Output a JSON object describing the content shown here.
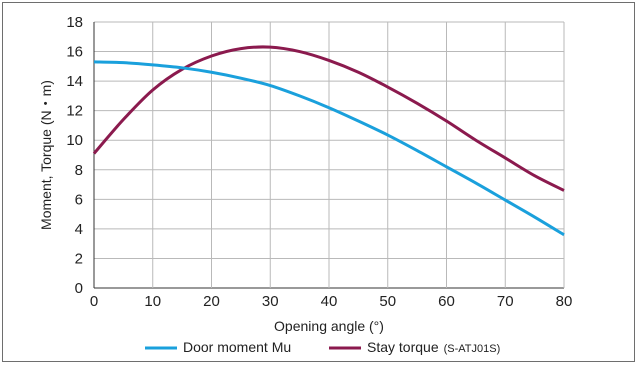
{
  "chart_data": {
    "type": "line",
    "xlabel": "Opening angle (°)",
    "ylabel": "Moment, Torque (N・m)",
    "xlim": [
      0,
      80
    ],
    "ylim": [
      0,
      18
    ],
    "x_ticks": [
      0,
      10,
      20,
      30,
      40,
      50,
      60,
      70,
      80
    ],
    "y_ticks": [
      0,
      2,
      4,
      6,
      8,
      10,
      12,
      14,
      16,
      18
    ],
    "grid": true,
    "legend_position": "bottom",
    "series": [
      {
        "name": "Door moment Mu",
        "color": "#1aa0dc",
        "x": [
          0,
          5,
          10,
          15,
          20,
          25,
          30,
          35,
          40,
          45,
          50,
          55,
          60,
          65,
          70,
          75,
          80
        ],
        "y": [
          15.3,
          15.25,
          15.1,
          14.9,
          14.6,
          14.2,
          13.7,
          13.0,
          12.2,
          11.3,
          10.35,
          9.3,
          8.2,
          7.1,
          5.95,
          4.8,
          3.6
        ]
      },
      {
        "name": "Stay torque",
        "name_suffix": "(S-ATJ01S)",
        "color": "#8b1a4e",
        "x": [
          0,
          5,
          10,
          15,
          20,
          25,
          30,
          35,
          40,
          45,
          50,
          55,
          60,
          65,
          70,
          75,
          80
        ],
        "y": [
          9.1,
          11.4,
          13.4,
          14.8,
          15.7,
          16.2,
          16.3,
          16.0,
          15.4,
          14.6,
          13.6,
          12.5,
          11.3,
          10.0,
          8.8,
          7.6,
          6.6
        ]
      }
    ]
  }
}
